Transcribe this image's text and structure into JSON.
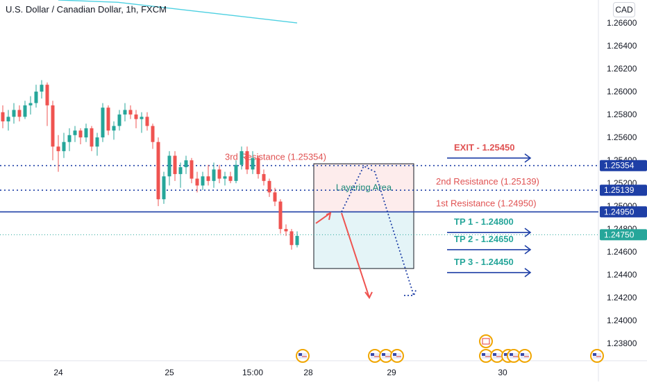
{
  "header": {
    "title": "U.S. Dollar / Canadian Dollar, 1h, FXCM",
    "currency": "CAD"
  },
  "chart_data": {
    "type": "candlestick",
    "y_ticks": [
      "1.26600",
      "1.26400",
      "1.26200",
      "1.26000",
      "1.25800",
      "1.25600",
      "1.25400",
      "1.25200",
      "1.25000",
      "1.24800",
      "1.24600",
      "1.24400",
      "1.24200",
      "1.24000",
      "1.23800"
    ],
    "x_ticks": [
      {
        "label": "24",
        "bar": 10
      },
      {
        "label": "25",
        "bar": 30
      },
      {
        "label": "15:00",
        "bar": 45
      },
      {
        "label": "28",
        "bar": 55
      },
      {
        "label": "29",
        "bar": 70
      },
      {
        "label": "30",
        "bar": 90
      }
    ],
    "bar_count": 112,
    "ylim": [
      1.2365,
      1.268
    ],
    "candles": [
      [
        1.2582,
        1.2588,
        1.2568,
        1.2574
      ],
      [
        1.2574,
        1.2584,
        1.2566,
        1.2578
      ],
      [
        1.2578,
        1.259,
        1.2572,
        1.2584
      ],
      [
        1.2584,
        1.2588,
        1.2574,
        1.2578
      ],
      [
        1.2578,
        1.2592,
        1.2576,
        1.2588
      ],
      [
        1.2588,
        1.2596,
        1.258,
        1.259
      ],
      [
        1.259,
        1.2606,
        1.2586,
        1.26
      ],
      [
        1.26,
        1.261,
        1.2594,
        1.2606
      ],
      [
        1.2606,
        1.2608,
        1.257,
        1.2588
      ],
      [
        1.2588,
        1.2592,
        1.254,
        1.2552
      ],
      [
        1.2552,
        1.2562,
        1.253,
        1.2548
      ],
      [
        1.2548,
        1.2564,
        1.2542,
        1.2556
      ],
      [
        1.2556,
        1.2568,
        1.2548,
        1.2562
      ],
      [
        1.2562,
        1.257,
        1.2556,
        1.2566
      ],
      [
        1.2566,
        1.2568,
        1.2554,
        1.256
      ],
      [
        1.256,
        1.2572,
        1.2556,
        1.2568
      ],
      [
        1.2568,
        1.257,
        1.2548,
        1.2552
      ],
      [
        1.2552,
        1.2564,
        1.2544,
        1.256
      ],
      [
        1.256,
        1.259,
        1.2556,
        1.2586
      ],
      [
        1.2586,
        1.2588,
        1.2562,
        1.2566
      ],
      [
        1.2566,
        1.2574,
        1.2558,
        1.257
      ],
      [
        1.257,
        1.2584,
        1.2566,
        1.258
      ],
      [
        1.258,
        1.259,
        1.2574,
        1.2584
      ],
      [
        1.2584,
        1.2588,
        1.2576,
        1.258
      ],
      [
        1.258,
        1.2584,
        1.2568,
        1.2576
      ],
      [
        1.2576,
        1.2582,
        1.2564,
        1.2578
      ],
      [
        1.2578,
        1.2582,
        1.2566,
        1.257
      ],
      [
        1.257,
        1.2572,
        1.255,
        1.2556
      ],
      [
        1.2556,
        1.256,
        1.25,
        1.2506
      ],
      [
        1.2506,
        1.253,
        1.2502,
        1.2526
      ],
      [
        1.2526,
        1.2548,
        1.2518,
        1.2544
      ],
      [
        1.2544,
        1.2548,
        1.2522,
        1.2528
      ],
      [
        1.2528,
        1.2538,
        1.2516,
        1.2534
      ],
      [
        1.2534,
        1.2544,
        1.2528,
        1.254
      ],
      [
        1.254,
        1.2542,
        1.252,
        1.2524
      ],
      [
        1.2524,
        1.253,
        1.2512,
        1.2518
      ],
      [
        1.2518,
        1.253,
        1.2514,
        1.2526
      ],
      [
        1.2526,
        1.2536,
        1.2518,
        1.2522
      ],
      [
        1.2522,
        1.2538,
        1.2516,
        1.2532
      ],
      [
        1.2532,
        1.2536,
        1.252,
        1.2524
      ],
      [
        1.2524,
        1.253,
        1.2518,
        1.2526
      ],
      [
        1.2526,
        1.253,
        1.252,
        1.2522
      ],
      [
        1.2522,
        1.254,
        1.252,
        1.2536
      ],
      [
        1.2536,
        1.2552,
        1.2532,
        1.2548
      ],
      [
        1.2548,
        1.2552,
        1.2528,
        1.2532
      ],
      [
        1.2532,
        1.2548,
        1.2528,
        1.2542
      ],
      [
        1.2542,
        1.2544,
        1.2524,
        1.2528
      ],
      [
        1.2528,
        1.2532,
        1.2518,
        1.2522
      ],
      [
        1.2522,
        1.2524,
        1.2508,
        1.2512
      ],
      [
        1.2512,
        1.2516,
        1.25,
        1.2504
      ],
      [
        1.2504,
        1.2506,
        1.2476,
        1.248
      ],
      [
        1.248,
        1.2484,
        1.2474,
        1.2478
      ],
      [
        1.2478,
        1.248,
        1.2462,
        1.2466
      ],
      [
        1.2466,
        1.2478,
        1.2464,
        1.2474
      ]
    ],
    "ema": {
      "start_bar": 10,
      "end_bar": 53,
      "values": [
        1.268,
        1.2678,
        1.2672,
        1.2666,
        1.266
      ]
    },
    "levels": [
      {
        "name": "3rd Resistance",
        "value": 1.25354,
        "style": "dotted",
        "color": "#1e3fa6",
        "label": "3rd Resistance (1.25354)",
        "label_color": "#e05252",
        "badge": "1.25354"
      },
      {
        "name": "2nd Resistance",
        "value": 1.25139,
        "style": "dotted",
        "color": "#1e3fa6",
        "label": "2nd Resistance (1.25139)",
        "label_color": "#e05252",
        "badge": "1.25139"
      },
      {
        "name": "1st Resistance",
        "value": 1.2495,
        "style": "solid",
        "color": "#1e3fa6",
        "label": "1st Resistance (1.24950)",
        "label_color": "#e05252",
        "badge": "1.24950"
      },
      {
        "name": "Current",
        "value": 1.2475,
        "style": "dotted-thin",
        "color": "#26a69a",
        "badge": "1.24750"
      }
    ],
    "targets": [
      {
        "label": "EXIT - 1.25450",
        "value": 1.2545,
        "color": "#e05252"
      },
      {
        "label": "TP 1 - 1.24800",
        "value": 1.248,
        "color": "#26a69a"
      },
      {
        "label": "TP 2 - 1.24650",
        "value": 1.2465,
        "color": "#26a69a"
      },
      {
        "label": "TP 3 - 1.24450",
        "value": 1.2445,
        "color": "#26a69a"
      }
    ],
    "position": {
      "entry": 1.2495,
      "stop": 1.2537,
      "target": 1.24455,
      "start_bar": 56,
      "end_bar": 74,
      "label": "Layering Area"
    },
    "colors": {
      "up": "#26a69a",
      "down": "#ef5350",
      "ema": "#4dd0e1",
      "axis_text": "#131722",
      "level": "#1e3fa6"
    }
  }
}
